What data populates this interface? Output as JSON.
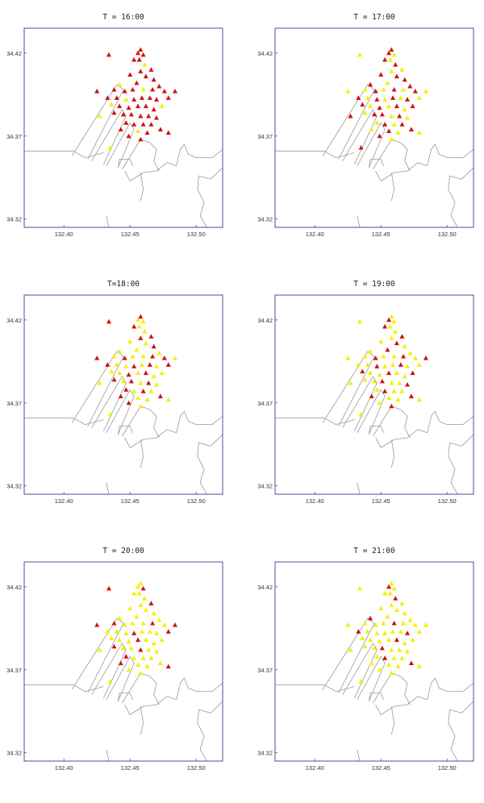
{
  "chart_data": {
    "type": "scatter",
    "xlim": [
      132.37,
      132.52
    ],
    "ylim": [
      34.315,
      34.435
    ],
    "x_ticks": [
      {
        "value": 132.4,
        "label": "132.40"
      },
      {
        "value": 132.45,
        "label": "132.45"
      },
      {
        "value": 132.5,
        "label": "132.50"
      }
    ],
    "y_ticks": [
      {
        "value": 34.42,
        "label": "34.42"
      },
      {
        "value": 34.37,
        "label": "34.37"
      },
      {
        "value": 34.32,
        "label": "34.32"
      }
    ],
    "colors": {
      "red": "#d21010",
      "yellow": "#f4f000",
      "frame": "#3b3b8a",
      "coast": "#9a9a9a"
    },
    "grid": false,
    "legend": false,
    "stations": [
      [
        132.434,
        34.419
      ],
      [
        132.456,
        34.42
      ],
      [
        132.458,
        34.422
      ],
      [
        132.46,
        34.419
      ],
      [
        132.453,
        34.416
      ],
      [
        132.457,
        34.416
      ],
      [
        132.461,
        34.413
      ],
      [
        132.466,
        34.41
      ],
      [
        132.45,
        34.407
      ],
      [
        132.458,
        34.409
      ],
      [
        132.462,
        34.406
      ],
      [
        132.425,
        34.397
      ],
      [
        132.442,
        34.401
      ],
      [
        132.455,
        34.402
      ],
      [
        132.468,
        34.404
      ],
      [
        132.438,
        34.398
      ],
      [
        132.446,
        34.397
      ],
      [
        132.452,
        34.398
      ],
      [
        132.46,
        34.398
      ],
      [
        132.467,
        34.398
      ],
      [
        132.472,
        34.4
      ],
      [
        132.476,
        34.397
      ],
      [
        132.484,
        34.397
      ],
      [
        132.433,
        34.393
      ],
      [
        132.44,
        34.393
      ],
      [
        132.447,
        34.392
      ],
      [
        132.453,
        34.392
      ],
      [
        132.459,
        34.393
      ],
      [
        132.465,
        34.393
      ],
      [
        132.47,
        34.392
      ],
      [
        132.479,
        34.393
      ],
      [
        132.436,
        34.389
      ],
      [
        132.442,
        34.388
      ],
      [
        132.449,
        34.387
      ],
      [
        132.456,
        34.388
      ],
      [
        132.462,
        34.388
      ],
      [
        132.468,
        34.386
      ],
      [
        132.474,
        34.388
      ],
      [
        132.438,
        34.384
      ],
      [
        132.445,
        34.383
      ],
      [
        132.451,
        34.383
      ],
      [
        132.458,
        34.382
      ],
      [
        132.464,
        34.382
      ],
      [
        132.47,
        34.381
      ],
      [
        132.427,
        34.382
      ],
      [
        132.447,
        34.378
      ],
      [
        132.453,
        34.377
      ],
      [
        132.46,
        34.377
      ],
      [
        132.466,
        34.377
      ],
      [
        132.443,
        34.374
      ],
      [
        132.456,
        34.373
      ],
      [
        132.463,
        34.372
      ],
      [
        132.473,
        34.374
      ],
      [
        132.479,
        34.372
      ],
      [
        132.449,
        34.37
      ],
      [
        132.458,
        34.368
      ],
      [
        132.435,
        34.363
      ]
    ],
    "panels": [
      {
        "title": "T = 16:00",
        "red_count": 48
      },
      {
        "title": "T = 17:00",
        "red_count": 30
      },
      {
        "title": "T=18:00",
        "red_count": 24
      },
      {
        "title": "T = 19:00",
        "red_count": 19
      },
      {
        "title": "T = 20:00",
        "red_count": 15
      },
      {
        "title": "T = 21:00",
        "red_count": 10
      }
    ]
  }
}
